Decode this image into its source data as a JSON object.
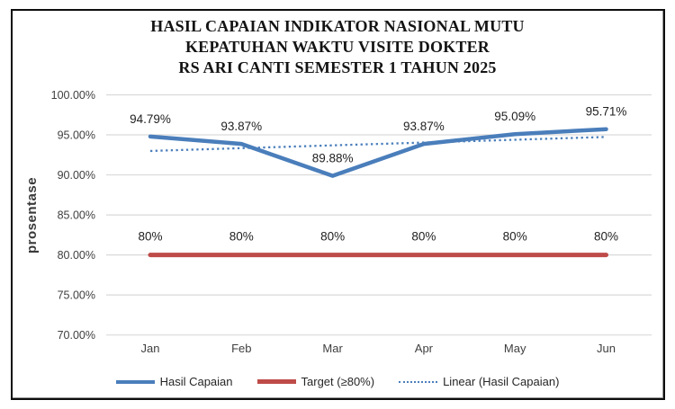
{
  "chart_data": {
    "type": "line",
    "title": "HASIL CAPAIAN INDIKATOR NASIONAL MUTU KEPATUHAN WAKTU VISITE DOKTER RS ARI CANTI SEMESTER 1 TAHUN 2025",
    "title_lines": [
      "HASIL CAPAIAN INDIKATOR NASIONAL MUTU",
      "KEPATUHAN WAKTU VISITE DOKTER",
      "RS ARI CANTI SEMESTER 1 TAHUN 2025"
    ],
    "ylabel": "prosentase",
    "categories": [
      "Jan",
      "Feb",
      "Mar",
      "Apr",
      "May",
      "Jun"
    ],
    "ylim": [
      70,
      100
    ],
    "y_tick_values": [
      100,
      95,
      90,
      85,
      80,
      75,
      70
    ],
    "y_tick_labels": [
      "100.00%",
      "95.00%",
      "90.00%",
      "85.00%",
      "80.00%",
      "75.00%",
      "70.00%"
    ],
    "grid": true,
    "legend_position": "bottom",
    "series": [
      {
        "name": "Hasil Capaian",
        "style": "solid",
        "color": "#4a7ebb",
        "values": [
          94.79,
          93.87,
          89.88,
          93.87,
          95.09,
          95.71
        ],
        "point_labels": [
          "94.79%",
          "93.87%",
          "89.88%",
          "93.87%",
          "95.09%",
          "95.71%"
        ]
      },
      {
        "name": "Target (≥80%)",
        "style": "solid",
        "color": "#be4b48",
        "values": [
          80,
          80,
          80,
          80,
          80,
          80
        ],
        "point_labels": [
          "80%",
          "80%",
          "80%",
          "80%",
          "80%",
          "80%"
        ]
      },
      {
        "name": "Linear (Hasil Capaian)",
        "style": "dotted",
        "color": "#4a7ebb",
        "values": [
          92.99,
          93.34,
          93.69,
          94.04,
          94.39,
          94.74
        ],
        "point_labels": null
      }
    ],
    "colors": {
      "gridline": "#d9d9d9",
      "axis_text": "#3f3f3f",
      "data_label": "#1f1f1f",
      "frame_border": "#0d0d0d"
    }
  }
}
